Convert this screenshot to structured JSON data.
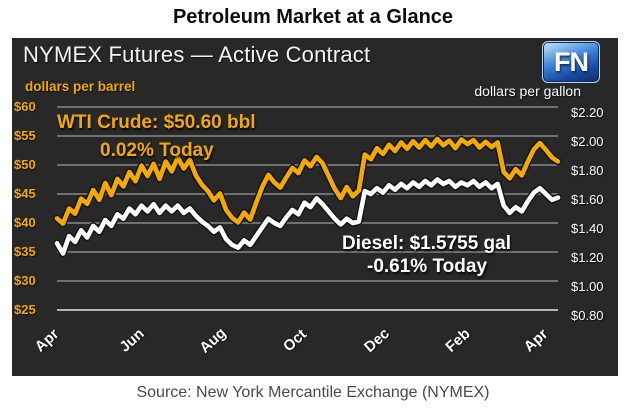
{
  "title": "Petroleum Market at a Glance",
  "panel": {
    "header": "NYMEX Futures — Active Contract",
    "logo_text": "FN",
    "left_axis_caption": "dollars per barrel",
    "right_axis_caption": "dollars per gallon",
    "annotations": {
      "wti_line1": "WTI Crude: $50.60 bbl",
      "wti_line2": "0.02% Today",
      "diesel_line1": "Diesel: $1.5755 gal",
      "diesel_line2": "-0.61% Today"
    }
  },
  "source": "Source: New York Mercantile Exchange (NYMEX)",
  "colors": {
    "panel_bg": "#282828",
    "gold": "#f2a900",
    "white": "#ffffff",
    "gridline": "#9b9b9b",
    "gridline_bottom": "#c8c8c8",
    "line_shadow": "#141414",
    "source_text": "#4a4a4a"
  },
  "chart_data": {
    "type": "line",
    "title": "NYMEX Futures — Active Contract",
    "x_tick_labels": [
      "Apr",
      "Jun",
      "Aug",
      "Oct",
      "Dec",
      "Feb",
      "Apr"
    ],
    "left_axis": {
      "label": "dollars per barrel",
      "tick_labels": [
        "$60",
        "$55",
        "$50",
        "$45",
        "$40",
        "$35",
        "$30",
        "$25"
      ],
      "tick_values": [
        60,
        55,
        50,
        45,
        40,
        35,
        30,
        25
      ],
      "range": [
        25,
        60
      ]
    },
    "right_axis": {
      "label": "dollars per gallon",
      "tick_labels": [
        "$2.20",
        "$2.00",
        "$1.80",
        "$1.60",
        "$1.40",
        "$1.20",
        "$1.00",
        "$0.80"
      ],
      "tick_values": [
        2.2,
        2.0,
        1.8,
        1.6,
        1.4,
        1.2,
        1.0,
        0.8
      ],
      "range": [
        0.8,
        2.2
      ]
    },
    "grid": true,
    "legend": "annotations-on-plot",
    "series": [
      {
        "name": "WTI Crude",
        "axis": "left",
        "unit": "$/bbl",
        "color": "#f2a900",
        "last_value": 50.6,
        "change_today_pct": 0.02,
        "values": [
          40.8,
          39.9,
          42.5,
          41.6,
          44.2,
          43.3,
          45.7,
          44.0,
          46.9,
          44.8,
          47.6,
          46.3,
          48.8,
          47.2,
          49.9,
          48.1,
          50.2,
          47.6,
          50.6,
          48.9,
          51.3,
          49.4,
          50.9,
          48.2,
          46.6,
          45.5,
          43.9,
          45.1,
          42.3,
          40.9,
          40.1,
          41.8,
          40.6,
          43.5,
          46.2,
          48.3,
          47.0,
          46.1,
          47.9,
          49.5,
          48.6,
          50.8,
          49.8,
          51.4,
          50.3,
          48.1,
          45.9,
          44.3,
          46.2,
          44.6,
          45.6,
          51.8,
          51.0,
          52.9,
          51.9,
          53.5,
          52.4,
          53.9,
          52.8,
          54.1,
          53.0,
          54.3,
          53.2,
          54.5,
          53.4,
          54.2,
          52.9,
          54.4,
          53.6,
          54.3,
          53.0,
          54.0,
          53.1,
          53.9,
          48.8,
          47.7,
          49.3,
          48.2,
          50.6,
          52.7,
          53.8,
          52.6,
          51.3,
          50.6
        ]
      },
      {
        "name": "Diesel",
        "axis": "right",
        "unit": "$/gal",
        "color": "#ffffff",
        "last_value": 1.5755,
        "change_today_pct": -0.61,
        "values": [
          1.26,
          1.19,
          1.31,
          1.27,
          1.35,
          1.3,
          1.38,
          1.34,
          1.42,
          1.38,
          1.46,
          1.43,
          1.5,
          1.46,
          1.52,
          1.48,
          1.53,
          1.47,
          1.52,
          1.48,
          1.52,
          1.47,
          1.5,
          1.45,
          1.41,
          1.38,
          1.34,
          1.37,
          1.29,
          1.25,
          1.23,
          1.28,
          1.25,
          1.31,
          1.37,
          1.43,
          1.4,
          1.38,
          1.44,
          1.49,
          1.46,
          1.54,
          1.51,
          1.57,
          1.53,
          1.48,
          1.43,
          1.39,
          1.43,
          1.4,
          1.41,
          1.62,
          1.6,
          1.64,
          1.61,
          1.66,
          1.63,
          1.67,
          1.64,
          1.68,
          1.65,
          1.69,
          1.66,
          1.7,
          1.67,
          1.69,
          1.65,
          1.68,
          1.66,
          1.69,
          1.65,
          1.68,
          1.64,
          1.67,
          1.52,
          1.47,
          1.51,
          1.48,
          1.55,
          1.61,
          1.64,
          1.6,
          1.56,
          1.5755
        ]
      }
    ]
  }
}
